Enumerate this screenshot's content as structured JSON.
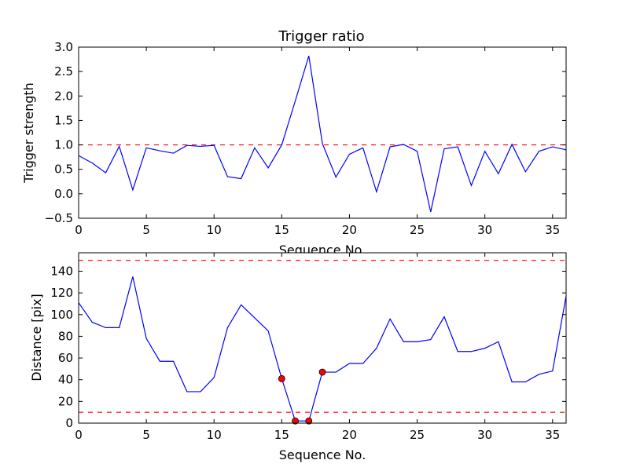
{
  "chart_data": [
    {
      "type": "line",
      "title": "Trigger ratio",
      "xlabel": "Sequence No.",
      "ylabel": "Trigger strength",
      "xlim": [
        0,
        36
      ],
      "ylim": [
        -0.5,
        3.0
      ],
      "xticks": [
        "0",
        "5",
        "10",
        "15",
        "20",
        "25",
        "30",
        "35"
      ],
      "yticks": [
        "−0.5",
        "0.0",
        "0.5",
        "1.0",
        "1.5",
        "2.0",
        "2.5",
        "3.0"
      ],
      "grid": false,
      "series": [
        {
          "color": "#0000ff",
          "x": [
            0,
            1,
            2,
            3,
            4,
            5,
            6,
            7,
            8,
            9,
            10,
            11,
            12,
            13,
            14,
            15,
            16,
            17,
            18,
            19,
            20,
            21,
            22,
            23,
            24,
            25,
            26,
            27,
            28,
            29,
            30,
            31,
            32,
            33,
            34,
            35,
            36
          ],
          "values": [
            0.78,
            0.63,
            0.43,
            0.97,
            0.08,
            0.94,
            0.88,
            0.83,
            0.99,
            0.97,
            0.99,
            0.35,
            0.31,
            0.94,
            0.53,
            1.0,
            1.9,
            2.82,
            1.03,
            0.34,
            0.81,
            0.94,
            0.04,
            0.96,
            1.01,
            0.87,
            -0.37,
            0.92,
            0.96,
            0.17,
            0.87,
            0.41,
            1.01,
            0.45,
            0.87,
            0.96,
            0.9
          ]
        }
      ],
      "reference_lines": [
        {
          "axis": "y",
          "value": 1.0,
          "color": "#ff0000",
          "style": "dashed"
        }
      ]
    },
    {
      "type": "line",
      "title": "",
      "xlabel": "Sequence No.",
      "ylabel": "Distance [pix]",
      "xlim": [
        0,
        36
      ],
      "ylim": [
        0,
        157
      ],
      "xticks": [
        "0",
        "5",
        "10",
        "15",
        "20",
        "25",
        "30",
        "35"
      ],
      "yticks": [
        "0",
        "20",
        "40",
        "60",
        "80",
        "100",
        "120",
        "140"
      ],
      "grid": false,
      "series": [
        {
          "color": "#0000ff",
          "x": [
            0,
            1,
            2,
            3,
            4,
            5,
            6,
            7,
            8,
            9,
            10,
            11,
            12,
            13,
            14,
            15,
            16,
            17,
            18,
            19,
            20,
            21,
            22,
            23,
            24,
            25,
            26,
            27,
            28,
            29,
            30,
            31,
            32,
            33,
            34,
            35,
            36
          ],
          "values": [
            111,
            93,
            88,
            88,
            135,
            78,
            57,
            57,
            29,
            29,
            42,
            88,
            109,
            97,
            85,
            41,
            2,
            2,
            47,
            47,
            55,
            55,
            69,
            96,
            75,
            75,
            77,
            98,
            66,
            66,
            69,
            75,
            38,
            38,
            45,
            48,
            117
          ]
        }
      ],
      "highlight_points": {
        "color": "#ff0000",
        "x": [
          15,
          16,
          17,
          18
        ],
        "values": [
          41,
          2,
          2,
          47
        ]
      },
      "reference_lines": [
        {
          "axis": "y",
          "value": 150,
          "color": "#ff0000",
          "style": "dashed"
        },
        {
          "axis": "y",
          "value": 10,
          "color": "#ff0000",
          "style": "dashed"
        }
      ]
    }
  ]
}
